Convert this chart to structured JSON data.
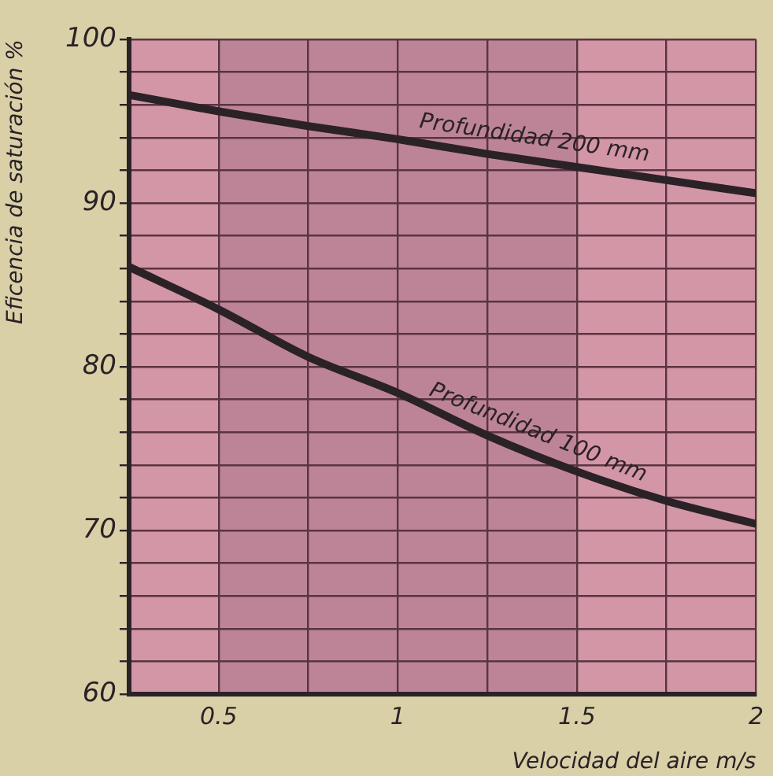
{
  "chart_data": {
    "type": "line",
    "xlabel": "Velocidad del aire m/s",
    "ylabel": "Eficencia de saturación %",
    "x": [
      0.25,
      0.5,
      0.75,
      1,
      1.25,
      1.5,
      1.75,
      2
    ],
    "series": [
      {
        "color": "#2a2226",
        "values": [
          96.6,
          95.6,
          94.7,
          93.9,
          93.0,
          92.2,
          91.4,
          90.6
        ]
      },
      {
        "color": "#2a2226",
        "values": [
          86.1,
          83.5,
          80.6,
          78.4,
          75.8,
          73.6,
          71.8,
          70.4
        ]
      }
    ],
    "xlim": [
      0.25,
      2
    ],
    "xticks": [
      0.5,
      {
        "value": 0.75,
        "label": null
      },
      1,
      {
        "value": 1.25,
        "label": null
      },
      1.5,
      {
        "value": 1.75,
        "label": null
      },
      2
    ],
    "ylim": [
      60,
      100
    ],
    "yticks": [
      60,
      {
        "value": 62,
        "label": null
      },
      {
        "value": 64,
        "label": null
      },
      {
        "value": 66,
        "label": null
      },
      {
        "value": 68,
        "label": null
      },
      70,
      {
        "value": 72,
        "label": null
      },
      {
        "value": 74,
        "label": null
      },
      {
        "value": 76,
        "label": null
      },
      {
        "value": 78,
        "label": null
      },
      80,
      {
        "value": 82,
        "label": null
      },
      {
        "value": 84,
        "label": null
      },
      {
        "value": 86,
        "label": null
      },
      {
        "value": 88,
        "label": null
      },
      90,
      {
        "value": 92,
        "label": null
      },
      {
        "value": 94,
        "label": null
      },
      {
        "value": 96,
        "label": null
      },
      {
        "value": 98,
        "label": null
      },
      100
    ],
    "bands": [
      {
        "axis": "x",
        "from": 0.25,
        "to": 0.5,
        "color": "#d396a6"
      },
      {
        "axis": "x",
        "from": 0.5,
        "to": 1.5,
        "color": "#bd8498"
      },
      {
        "axis": "x",
        "from": 1.5,
        "to": 2,
        "color": "#d396a6"
      }
    ],
    "annotations": [
      "Profundidad 200 mm",
      "Profundidad 100 mm"
    ],
    "grid": true,
    "legend": false,
    "marker": "none",
    "line_style": "solid"
  }
}
